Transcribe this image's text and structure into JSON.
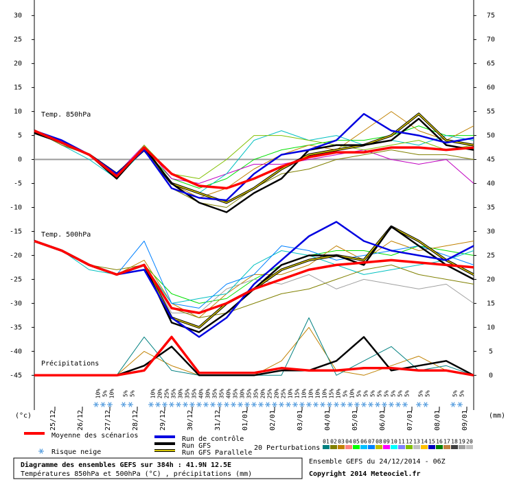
{
  "chart_data": {
    "type": "line",
    "title": "Diagramme des ensembles GEFS sur 384h : 41.9N 12.5E",
    "subtitle": "Températures 850hPa et 500hPa (°C) , précipitations (mm)",
    "run_info": "Ensemble GEFS du 24/12/2014 - 06Z",
    "copyright": "Copyright 2014 Meteociel.fr",
    "annotations": [
      "Temp. 850hPa",
      "Temp. 500hPa",
      "Précipitations"
    ],
    "ylabel": "(°c)",
    "y2label": "(mm)",
    "x": [
      0,
      24,
      48,
      72,
      96,
      120,
      144,
      168,
      192,
      216,
      240,
      264,
      288,
      312,
      336,
      360,
      384
    ],
    "xlim": [
      0,
      384
    ],
    "xticks": [
      {
        "value": 18,
        "label": "25/12"
      },
      {
        "value": 42,
        "label": "26/12"
      },
      {
        "value": 66,
        "label": "27/12"
      },
      {
        "value": 90,
        "label": "28/12"
      },
      {
        "value": 114,
        "label": "29/12"
      },
      {
        "value": 138,
        "label": "30/12"
      },
      {
        "value": 162,
        "label": "31/12"
      },
      {
        "value": 186,
        "label": "01/01"
      },
      {
        "value": 210,
        "label": "02/01"
      },
      {
        "value": 234,
        "label": "03/01"
      },
      {
        "value": 258,
        "label": "04/01"
      },
      {
        "value": 282,
        "label": "05/01"
      },
      {
        "value": 306,
        "label": "06/01"
      },
      {
        "value": 330,
        "label": "07/01"
      },
      {
        "value": 354,
        "label": "08/01"
      },
      {
        "value": 378,
        "label": "09/01"
      }
    ],
    "ylim": [
      -52.1,
      31.1
    ],
    "yticks": [
      30,
      25,
      20,
      15,
      10,
      5,
      0,
      -5,
      -10,
      -15,
      -20,
      -25,
      -30,
      -35,
      -40,
      -45
    ],
    "y2lim": [
      -7.1,
      76.1
    ],
    "y2ticks": [
      75,
      70,
      65,
      60,
      55,
      50,
      45,
      40,
      35,
      30,
      25,
      20,
      15,
      10,
      5,
      0
    ],
    "series": [
      {
        "kind": "member",
        "color": "#00e000",
        "values": [
          6,
          3,
          1,
          -3,
          2,
          -4,
          -6,
          -4,
          0,
          2,
          3,
          4,
          4,
          5,
          7,
          5,
          5
        ]
      },
      {
        "kind": "member",
        "color": "#c08000",
        "values": [
          6,
          4,
          1,
          -4,
          3,
          -5,
          -8,
          -6,
          -2,
          1,
          3,
          2,
          6,
          10,
          6,
          4,
          7
        ]
      },
      {
        "kind": "member",
        "color": "#c000c0",
        "values": [
          6,
          3,
          1,
          -3,
          3,
          -4,
          -5,
          -3,
          -1,
          -1,
          0,
          1,
          2,
          0,
          -1,
          0,
          -5
        ]
      },
      {
        "kind": "member",
        "color": "#00c0c0",
        "values": [
          6,
          3,
          0,
          -4,
          2,
          -5,
          -7,
          -3,
          4,
          6,
          4,
          5,
          3,
          4,
          3,
          5,
          4
        ]
      },
      {
        "kind": "member",
        "color": "#808000",
        "values": [
          6,
          3,
          1,
          -3,
          2,
          -6,
          -9,
          -10,
          -6,
          -3,
          -2,
          0,
          1,
          2,
          1,
          1,
          0
        ]
      },
      {
        "kind": "member",
        "color": "#80c000",
        "values": [
          6,
          4,
          1,
          -4,
          3,
          -3,
          -4,
          0,
          5,
          5,
          4,
          3,
          2,
          3,
          4,
          2,
          3
        ]
      },
      {
        "kind": "member",
        "color": "#00e000",
        "values": [
          -17,
          -19,
          -22,
          -24,
          -22,
          -28,
          -30,
          -29,
          -25,
          -22,
          -20,
          -19,
          -19,
          -20,
          -18,
          -19,
          -20
        ]
      },
      {
        "kind": "member",
        "color": "#c08000",
        "values": [
          -17,
          -19,
          -22,
          -24,
          -21,
          -30,
          -33,
          -28,
          -24,
          -24,
          -22,
          -18,
          -21,
          -17,
          -19,
          -18,
          -17
        ]
      },
      {
        "kind": "member",
        "color": "#a0a0a0",
        "values": [
          -17,
          -19,
          -22,
          -24,
          -22,
          -32,
          -32,
          -27,
          -25,
          -26,
          -24,
          -27,
          -25,
          -26,
          -27,
          -26,
          -30
        ]
      },
      {
        "kind": "member",
        "color": "#00c0c0",
        "values": [
          -17,
          -19,
          -23,
          -24,
          -22,
          -30,
          -29,
          -28,
          -22,
          -19,
          -20,
          -22,
          -24,
          -23,
          -22,
          -21,
          -19
        ]
      },
      {
        "kind": "member",
        "color": "#808000",
        "values": [
          -17,
          -19,
          -22,
          -23,
          -22,
          -31,
          -33,
          -32,
          -30,
          -28,
          -27,
          -25,
          -23,
          -22,
          -24,
          -25,
          -26
        ]
      },
      {
        "kind": "member",
        "color": "#0080ff",
        "values": [
          -17,
          -19,
          -22,
          -24,
          -17,
          -30,
          -31,
          -26,
          -24,
          -18,
          -19,
          -21,
          -20,
          -19,
          -18,
          -20,
          -22
        ]
      },
      {
        "kind": "member",
        "axis": "y2",
        "color": "#c08000",
        "values": [
          0,
          0,
          0,
          0,
          5,
          2,
          0,
          0,
          0,
          3,
          10,
          1,
          0,
          2,
          4,
          1,
          0
        ]
      },
      {
        "kind": "member",
        "axis": "y2",
        "color": "#008080",
        "values": [
          0,
          0,
          0,
          0,
          8,
          1,
          0,
          0,
          0,
          0,
          12,
          0,
          3,
          6,
          1,
          2,
          0
        ]
      },
      {
        "kind": "parallel",
        "color": "#d8c800",
        "outline": "#000000",
        "values": [
          -17,
          -19,
          -22,
          -24,
          -22,
          -33,
          -35,
          -30,
          -27,
          -23,
          -21,
          -20,
          -21,
          -14,
          -17,
          -21,
          -24
        ]
      },
      {
        "kind": "gfs",
        "color": "#000000",
        "values": [
          -17,
          -19,
          -22,
          -24,
          -22,
          -34,
          -36,
          -32,
          -27,
          -22,
          -20,
          -20,
          -22,
          -14,
          -18,
          -22,
          -25
        ]
      },
      {
        "kind": "control",
        "color": "#0000e0",
        "values": [
          -17,
          -19,
          -22,
          -24,
          -23,
          -33,
          -37,
          -33,
          -26,
          -21,
          -16,
          -13,
          -17,
          -19,
          -20,
          -21,
          -18
        ]
      },
      {
        "kind": "mean",
        "color": "#ff0000",
        "values": [
          -17,
          -19,
          -22,
          -24,
          -22,
          -31,
          -32,
          -30,
          -27,
          -25,
          -23,
          -22,
          -21.5,
          -21,
          -21.5,
          -22,
          -22.5
        ]
      },
      {
        "kind": "gfs",
        "axis": "y2",
        "color": "#000000",
        "values": [
          0,
          0,
          0,
          0,
          2,
          6,
          0,
          0,
          0,
          1,
          1,
          3,
          8,
          1,
          2,
          3,
          0
        ]
      },
      {
        "kind": "mean",
        "axis": "y2",
        "color": "#ff0000",
        "values": [
          0,
          0,
          0,
          0,
          1,
          8,
          0.5,
          0.5,
          0.5,
          1.5,
          1,
          1,
          1.5,
          1.5,
          1,
          1,
          0
        ]
      },
      {
        "kind": "parallel",
        "name": "Run GFS Parallele",
        "color": "#d8c800",
        "outline": "#000000",
        "values": [
          6,
          3.5,
          1,
          -3,
          2,
          -5,
          -7,
          -9,
          -6,
          -2,
          1,
          2,
          3,
          5,
          9.5,
          4,
          3
        ]
      },
      {
        "kind": "gfs",
        "name": "Run GFS",
        "color": "#000000",
        "values": [
          5.5,
          3.5,
          1,
          -4,
          2.5,
          -5,
          -9,
          -11,
          -7,
          -4,
          2,
          3,
          3,
          4,
          8.5,
          3,
          2
        ]
      },
      {
        "kind": "control",
        "name": "Run de contrôle",
        "color": "#0000e0",
        "values": [
          6,
          4,
          1,
          -3,
          2,
          -6,
          -8,
          -8.5,
          -3,
          1,
          2,
          4,
          9.5,
          6,
          5,
          3.5,
          4.5
        ]
      },
      {
        "kind": "mean",
        "name": "Moyenne des scénarios",
        "color": "#ff0000",
        "values": [
          6,
          3.5,
          1,
          -3.5,
          2.5,
          -3,
          -5.5,
          -6,
          -4,
          -1.5,
          0.5,
          1.5,
          1.5,
          2.5,
          2.5,
          2,
          2.5
        ]
      }
    ],
    "perturbations": {
      "label": "20 Perturbations",
      "members": [
        {
          "label": "01",
          "color": "#008080"
        },
        {
          "label": "02",
          "color": "#808000"
        },
        {
          "label": "03",
          "color": "#c08000"
        },
        {
          "label": "04",
          "color": "#ff8080"
        },
        {
          "label": "05",
          "color": "#00ff00"
        },
        {
          "label": "06",
          "color": "#00c0ff"
        },
        {
          "label": "07",
          "color": "#0080ff"
        },
        {
          "label": "08",
          "color": "#c0c000"
        },
        {
          "label": "09",
          "color": "#ff00ff"
        },
        {
          "label": "10",
          "color": "#00ffff"
        },
        {
          "label": "11",
          "color": "#8080ff"
        },
        {
          "label": "12",
          "color": "#80c000"
        },
        {
          "label": "13",
          "color": "#c0c0c0"
        },
        {
          "label": "14",
          "color": "#ffc000"
        },
        {
          "label": "15",
          "color": "#0000c0"
        },
        {
          "label": "16",
          "color": "#008000"
        },
        {
          "label": "17",
          "color": "#c08040"
        },
        {
          "label": "18",
          "color": "#404040"
        },
        {
          "label": "19",
          "color": "#a0a0a0"
        },
        {
          "label": "20",
          "color": "#c0c0c0"
        }
      ]
    },
    "snow_risk": {
      "label": "Risque neige",
      "color": "#2040d0",
      "x": [
        54,
        60,
        66,
        78,
        84,
        102,
        108,
        114,
        120,
        126,
        132,
        138,
        144,
        150,
        156,
        162,
        168,
        174,
        180,
        186,
        192,
        198,
        204,
        210,
        216,
        222,
        228,
        234,
        240,
        246,
        252,
        258,
        264,
        270,
        276,
        282,
        288,
        294,
        300,
        306,
        312,
        318,
        324,
        336,
        342,
        366,
        372
      ],
      "values": [
        10,
        5,
        10,
        5,
        5,
        10,
        20,
        25,
        35,
        30,
        35,
        35,
        40,
        30,
        35,
        35,
        40,
        35,
        30,
        35,
        35,
        20,
        25,
        20,
        25,
        10,
        15,
        10,
        10,
        10,
        10,
        15,
        10,
        5,
        10,
        5,
        5,
        5,
        5,
        5,
        5,
        5,
        5,
        5,
        5,
        5,
        5
      ],
      "value_labels": [
        "10%",
        "5%",
        "10%",
        "5%",
        "5%",
        "10%",
        "20%",
        "25%",
        "35%",
        "30%",
        "35%",
        "35%",
        "40%",
        "30%",
        "35%",
        "35%",
        "40%",
        "35%",
        "30%",
        "35%",
        "35%",
        "20%",
        "25%",
        "20%",
        "25%",
        "10%",
        "15%",
        "10%",
        "10%",
        "10%",
        "10%",
        "15%",
        "10%",
        "5%",
        "10%",
        "5%",
        "5%",
        "5%",
        "5%",
        "5%",
        "5%",
        "5%",
        "5%",
        "5%",
        "5%",
        "5%",
        "5%"
      ]
    }
  }
}
